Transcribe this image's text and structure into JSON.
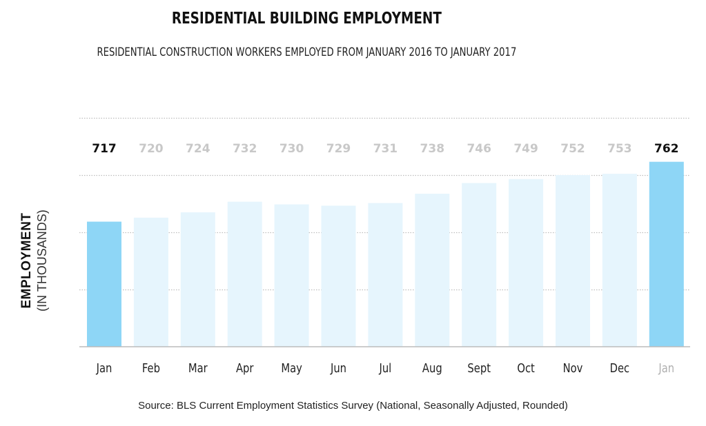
{
  "chart_data": {
    "type": "bar",
    "title": "RESIDENTIAL BUILDING EMPLOYMENT",
    "subtitle": "RESIDENTIAL CONSTRUCTION WORKERS EMPLOYED FROM JANUARY 2016 TO JANUARY 2017",
    "xlabel": "",
    "ylabel": "EMPLOYMENT",
    "ylabel_sub": "(IN THOUSANDS)",
    "categories": [
      "Jan",
      "Feb",
      "Mar",
      "Apr",
      "May",
      "Jun",
      "Jul",
      "Aug",
      "Sept",
      "Oct",
      "Nov",
      "Dec",
      "Jan"
    ],
    "values": [
      717,
      720,
      724,
      732,
      730,
      729,
      731,
      738,
      746,
      749,
      752,
      753,
      762
    ],
    "highlighted": [
      true,
      false,
      false,
      false,
      false,
      false,
      false,
      false,
      false,
      false,
      false,
      false,
      true
    ],
    "category_label_muted": [
      false,
      false,
      false,
      false,
      false,
      false,
      false,
      false,
      false,
      false,
      false,
      false,
      true
    ],
    "ylim": [
      623,
      795
    ],
    "gridlines": [
      666,
      709,
      752,
      795
    ],
    "grid": true,
    "legend": "none",
    "source": "Source: BLS Current Employment Statistics Survey (National, Seasonally Adjusted, Rounded)"
  },
  "colors": {
    "highlight_bar": "#8ed6f6",
    "normal_bar": "#e6f5fd",
    "highlight_label": "#111111",
    "muted_label": "#c8c8c8",
    "muted_category": "#b0b0b0",
    "category": "#222222",
    "gridline": "#bdbdbd",
    "axis": "#bbbbbb"
  }
}
